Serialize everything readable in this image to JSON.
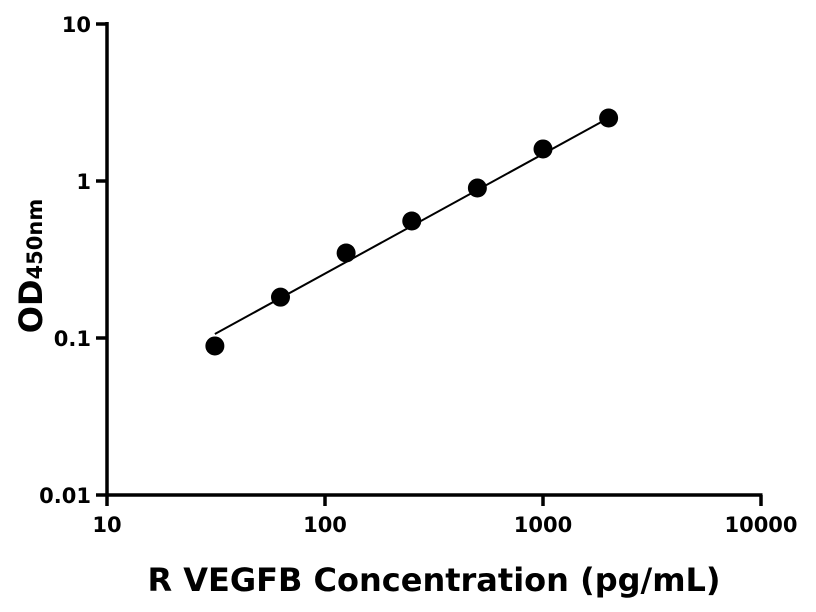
{
  "chart_data": {
    "type": "scatter",
    "title": "",
    "xlabel": "R VEGFB Concentration (pg/mL)",
    "ylabel_main": "OD",
    "ylabel_sub": "450nm",
    "x_scale": "log",
    "y_scale": "log",
    "xlim": [
      10,
      10000
    ],
    "ylim": [
      0.01,
      10
    ],
    "x_ticks": [
      10,
      100,
      1000,
      10000
    ],
    "x_tick_labels": [
      "10",
      "100",
      "1000",
      "10000"
    ],
    "y_ticks": [
      0.01,
      0.1,
      1,
      10
    ],
    "y_tick_labels": [
      "0.01",
      "0.1",
      "1",
      "10"
    ],
    "grid": false,
    "points": {
      "x": [
        31.25,
        62.5,
        125,
        250,
        500,
        1000,
        2000
      ],
      "y": [
        0.089,
        0.182,
        0.348,
        0.556,
        0.902,
        1.6,
        2.52
      ]
    },
    "fit_line": {
      "x": [
        31.25,
        2000
      ],
      "y": [
        0.106,
        2.52
      ]
    },
    "colors": {
      "points": "#000000",
      "line": "#000000",
      "axes": "#000000"
    }
  }
}
